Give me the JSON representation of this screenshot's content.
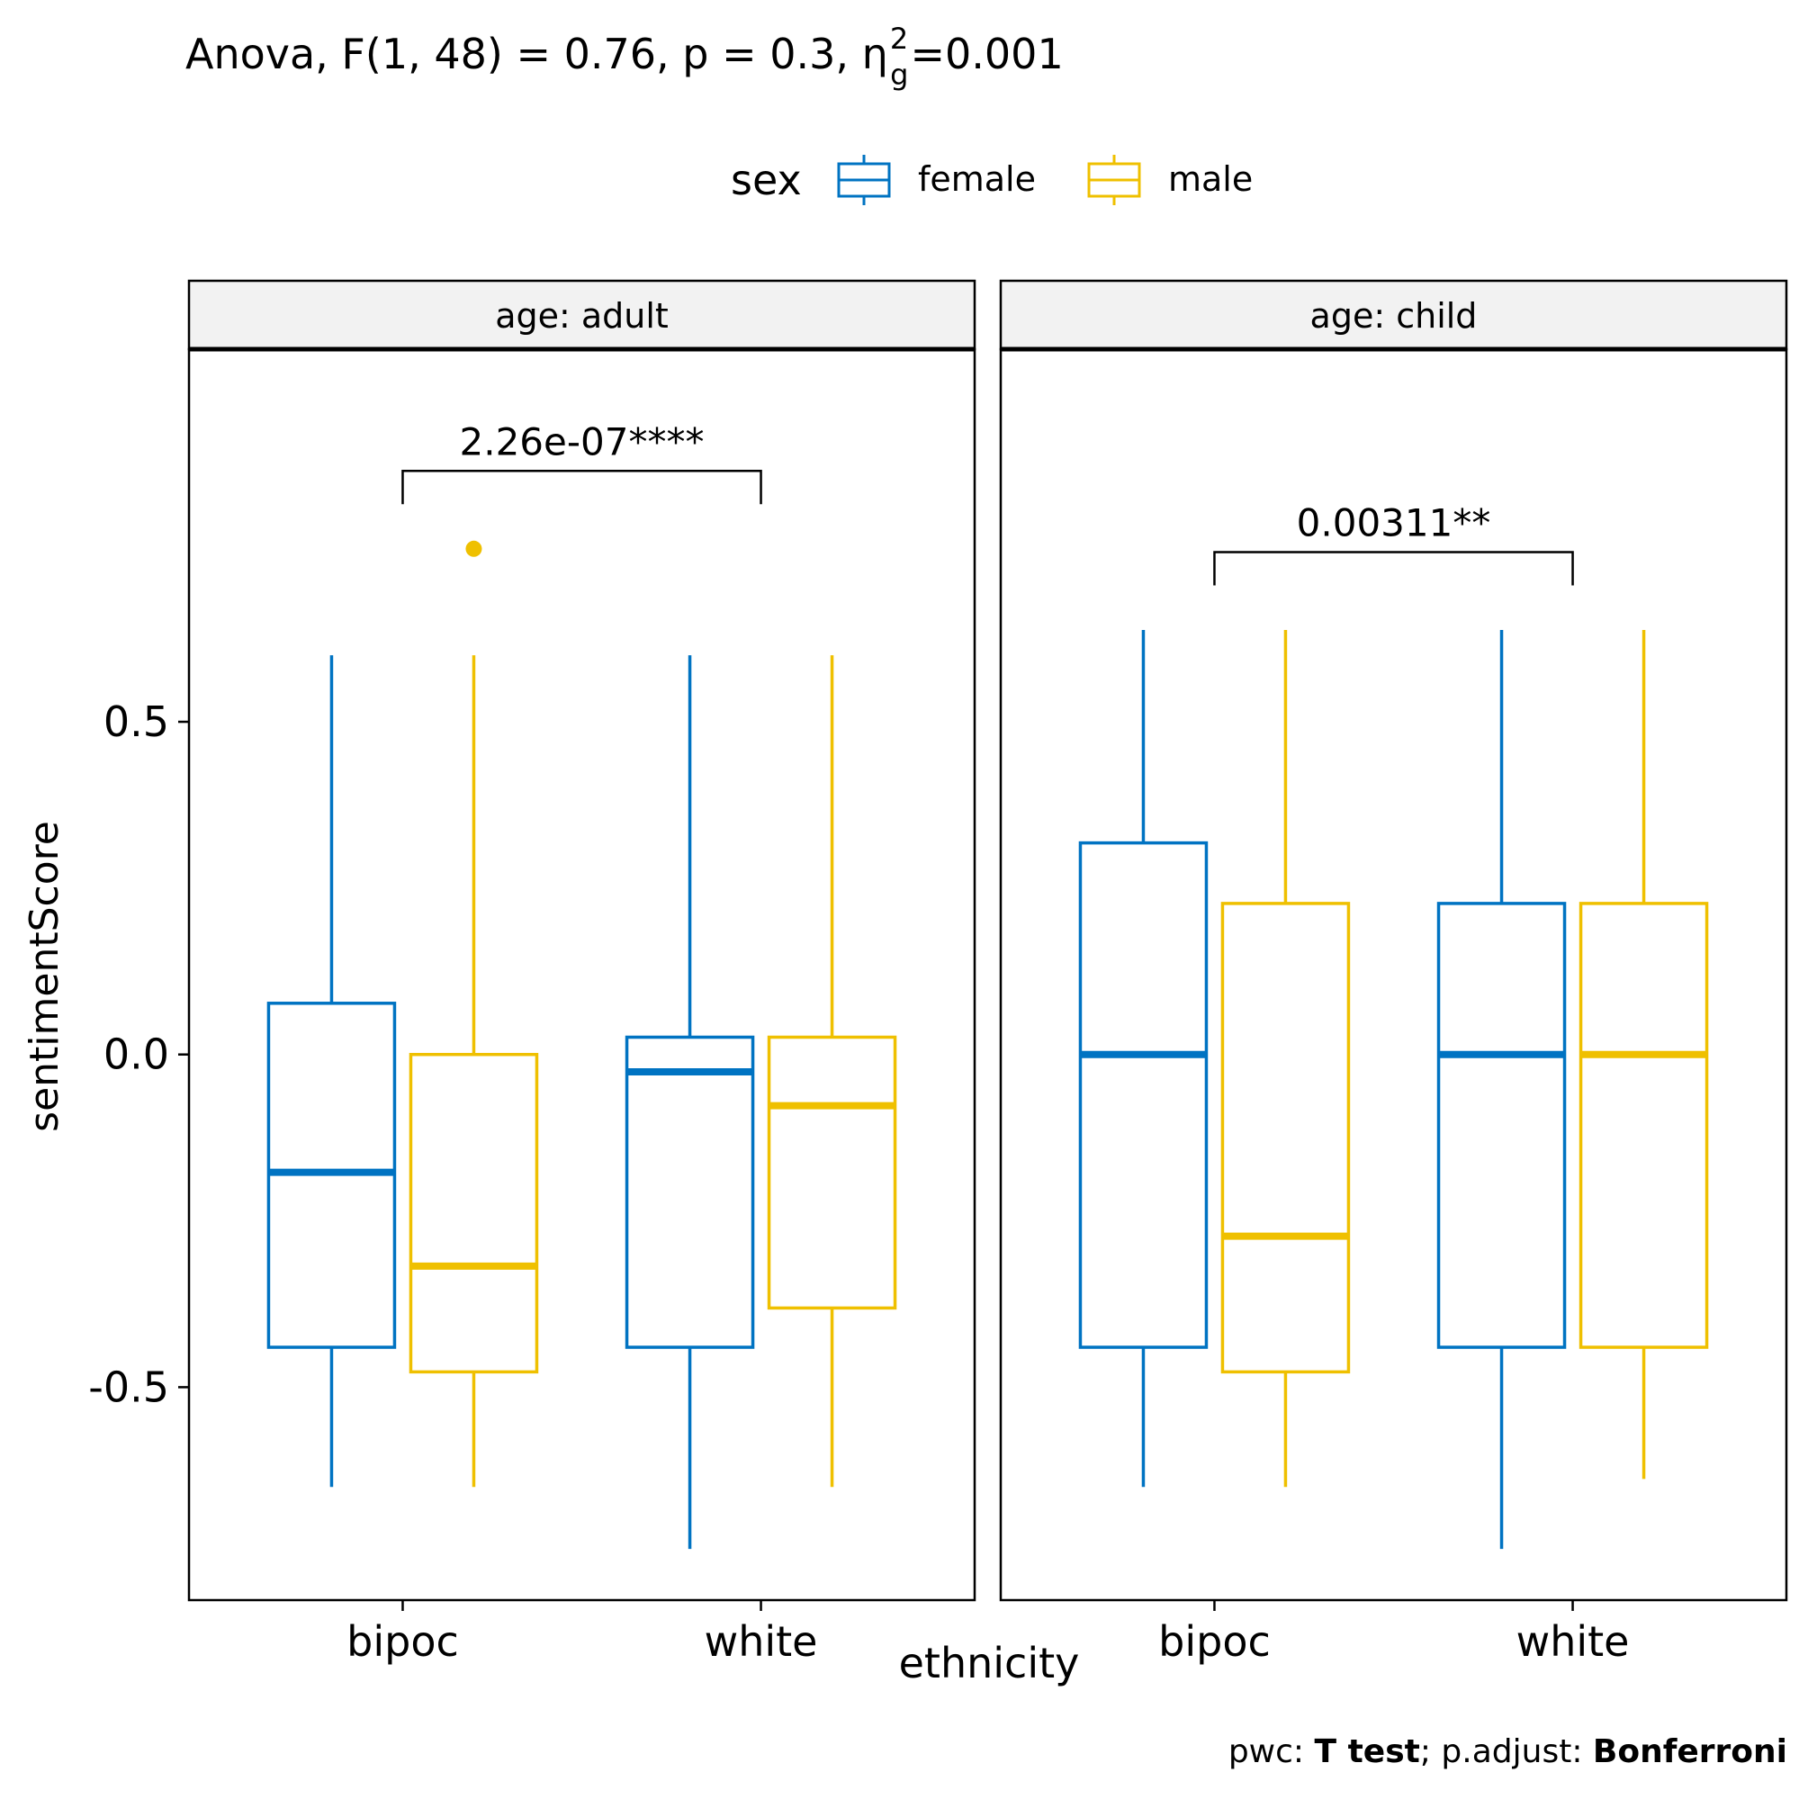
{
  "chart_data": {
    "type": "boxplot",
    "title": {
      "prefix": "Anova, F(1, 48) = 0.76, p = 0.3, η",
      "superscript": "2",
      "subscript": "g",
      "suffix": "=0.001"
    },
    "caption": {
      "parts": [
        {
          "text": "pwc: ",
          "bold": false
        },
        {
          "text": "T test",
          "bold": true
        },
        {
          "text": "; p.adjust: ",
          "bold": false
        },
        {
          "text": "Bonferroni",
          "bold": true
        }
      ]
    },
    "xlabel": "ethnicity",
    "ylabel": "sentimentScore",
    "ylim": [
      -0.82,
      1.06
    ],
    "yticks": [
      {
        "value": 0.5,
        "label": "0.5"
      },
      {
        "value": 0.0,
        "label": "0.0"
      },
      {
        "value": -0.5,
        "label": "-0.5"
      }
    ],
    "categories": [
      "bipoc",
      "white"
    ],
    "legend": {
      "title": "sex",
      "position": "top",
      "items": [
        {
          "label": "female",
          "color": "#0073C2"
        },
        {
          "label": "male",
          "color": "#EFC000"
        }
      ]
    },
    "panels": [
      {
        "strip": "age: adult",
        "groups": [
          {
            "category": "bipoc",
            "sex": "female",
            "whisker_low": -0.65,
            "q1": -0.44,
            "median": -0.177,
            "q3": 0.077,
            "whisker_high": 0.6,
            "outliers": []
          },
          {
            "category": "bipoc",
            "sex": "male",
            "whisker_low": -0.65,
            "q1": -0.477,
            "median": -0.318,
            "q3": 0.0,
            "whisker_high": 0.6,
            "outliers": [
              0.76
            ]
          },
          {
            "category": "white",
            "sex": "female",
            "whisker_low": -0.743,
            "q1": -0.44,
            "median": -0.026,
            "q3": 0.026,
            "whisker_high": 0.6,
            "outliers": []
          },
          {
            "category": "white",
            "sex": "male",
            "whisker_low": -0.65,
            "q1": -0.381,
            "median": -0.077,
            "q3": 0.026,
            "whisker_high": 0.6,
            "outliers": []
          }
        ],
        "bracket": {
          "label": "2.26e-07****",
          "y": 0.877,
          "tip": 0.05
        }
      },
      {
        "strip": "age: child",
        "groups": [
          {
            "category": "bipoc",
            "sex": "female",
            "whisker_low": -0.65,
            "q1": -0.44,
            "median": 0.0,
            "q3": 0.318,
            "whisker_high": 0.638,
            "outliers": []
          },
          {
            "category": "bipoc",
            "sex": "male",
            "whisker_low": -0.65,
            "q1": -0.477,
            "median": -0.273,
            "q3": 0.227,
            "whisker_high": 0.638,
            "outliers": []
          },
          {
            "category": "white",
            "sex": "female",
            "whisker_low": -0.743,
            "q1": -0.44,
            "median": 0.0,
            "q3": 0.227,
            "whisker_high": 0.638,
            "outliers": []
          },
          {
            "category": "white",
            "sex": "male",
            "whisker_low": -0.638,
            "q1": -0.44,
            "median": 0.0,
            "q3": 0.227,
            "whisker_high": 0.638,
            "outliers": []
          }
        ],
        "bracket": {
          "label": "0.00311**",
          "y": 0.755,
          "tip": 0.05
        }
      }
    ]
  }
}
